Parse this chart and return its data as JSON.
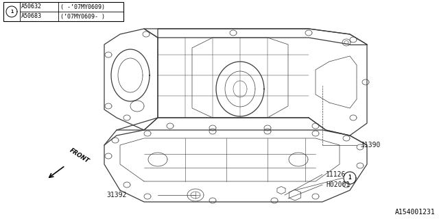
{
  "background_color": "#ffffff",
  "title_doc_number": "A154001231",
  "legend_table": {
    "rows": [
      {
        "code": "A50632",
        "desc": "( -’07MY0609)"
      },
      {
        "code": "A50683",
        "desc": "(’07MY0609- )"
      }
    ]
  },
  "font_size_labels": 7,
  "font_size_table": 6,
  "font_size_doc": 7,
  "lc": "#3a3a3a",
  "lw_main": 0.9,
  "lw_thin": 0.5,
  "lw_vt": 0.4
}
